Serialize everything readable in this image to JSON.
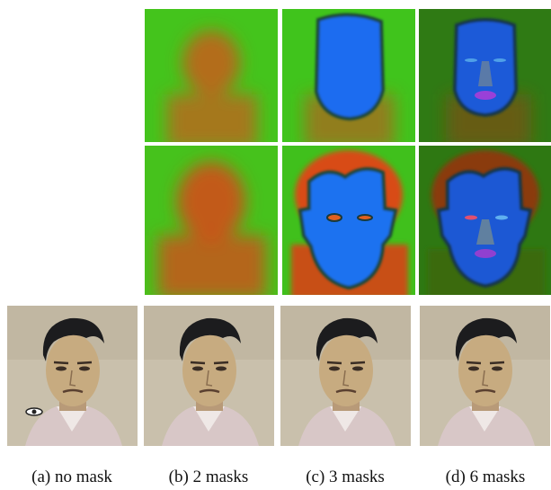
{
  "figure": {
    "captions": [
      "(a) no mask",
      "(b) 2 masks",
      "(c) 3 masks",
      "(d) 6 masks"
    ]
  }
}
